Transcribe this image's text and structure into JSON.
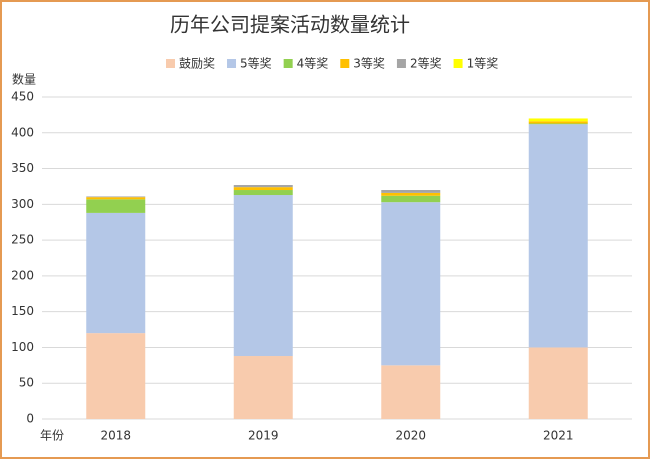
{
  "chart_data": {
    "type": "stacked_bar",
    "title": "历年公司提案活动数量统计",
    "y_label": "数量",
    "x_label": "年份",
    "categories": [
      "2018",
      "2019",
      "2020",
      "2021"
    ],
    "series": [
      {
        "name": "鼓励奖",
        "color": "#f8cbad",
        "values": [
          120,
          88,
          75,
          100
        ]
      },
      {
        "name": "5等奖",
        "color": "#b4c7e7",
        "values": [
          168,
          225,
          228,
          312
        ]
      },
      {
        "name": "4等奖",
        "color": "#92d050",
        "values": [
          19,
          7,
          9,
          1
        ]
      },
      {
        "name": "3等奖",
        "color": "#ffc000",
        "values": [
          3,
          4,
          4,
          3
        ]
      },
      {
        "name": "2等奖",
        "color": "#a5a5a5",
        "values": [
          1,
          3,
          4,
          0
        ]
      },
      {
        "name": "1等奖",
        "color": "#ffff00",
        "values": [
          0,
          0,
          0,
          4
        ]
      }
    ],
    "ylim": [
      0,
      450
    ],
    "yticks": [
      0,
      50,
      100,
      150,
      200,
      250,
      300,
      350,
      400,
      450
    ],
    "grid": true,
    "legend": "top"
  }
}
